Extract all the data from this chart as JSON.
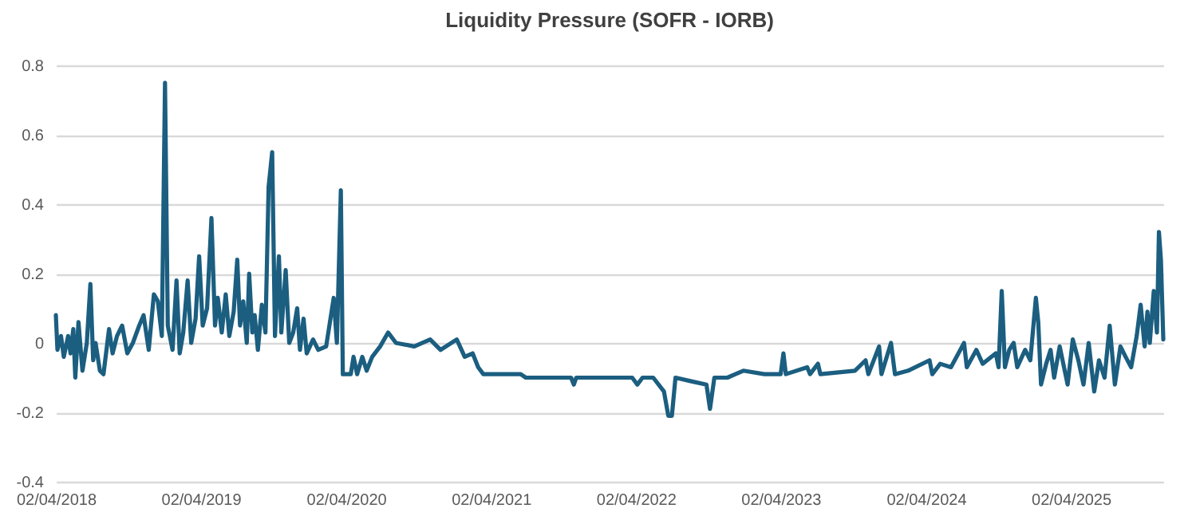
{
  "chart_data": {
    "type": "line",
    "title": "Liquidity Pressure (SOFR - IORB)",
    "x": [
      "2018-04-02",
      "2018-04-06",
      "2018-04-15",
      "2018-04-22",
      "2018-05-03",
      "2018-05-09",
      "2018-05-16",
      "2018-05-21",
      "2018-05-29",
      "2018-06-08",
      "2018-06-19",
      "2018-06-28",
      "2018-07-05",
      "2018-07-11",
      "2018-07-22",
      "2018-07-31",
      "2018-08-14",
      "2018-08-23",
      "2018-09-03",
      "2018-09-16",
      "2018-09-29",
      "2018-10-13",
      "2018-10-29",
      "2018-11-09",
      "2018-11-22",
      "2018-12-05",
      "2018-12-15",
      "2018-12-25",
      "2019-01-02",
      "2019-01-09",
      "2019-01-21",
      "2019-01-31",
      "2019-02-08",
      "2019-02-17",
      "2019-02-28",
      "2019-03-09",
      "2019-03-20",
      "2019-03-29",
      "2019-04-07",
      "2019-04-18",
      "2019-04-29",
      "2019-05-08",
      "2019-05-15",
      "2019-05-25",
      "2019-06-04",
      "2019-06-13",
      "2019-06-24",
      "2019-07-03",
      "2019-07-10",
      "2019-07-18",
      "2019-07-27",
      "2019-08-02",
      "2019-08-10",
      "2019-08-16",
      "2019-08-24",
      "2019-09-03",
      "2019-09-12",
      "2019-09-20",
      "2019-09-29",
      "2019-10-06",
      "2019-10-16",
      "2019-10-22",
      "2019-11-02",
      "2019-11-11",
      "2019-11-21",
      "2019-12-01",
      "2019-12-08",
      "2019-12-17",
      "2019-12-25",
      "2020-01-10",
      "2020-01-23",
      "2020-02-12",
      "2020-03-02",
      "2020-03-10",
      "2020-03-20",
      "2020-03-25",
      "2020-04-14",
      "2020-04-21",
      "2020-04-30",
      "2020-05-13",
      "2020-05-24",
      "2020-06-07",
      "2020-06-27",
      "2020-07-17",
      "2020-08-06",
      "2020-09-21",
      "2020-10-31",
      "2020-11-26",
      "2021-01-06",
      "2021-01-26",
      "2021-02-15",
      "2021-03-01",
      "2021-03-14",
      "2021-06-16",
      "2021-06-29",
      "2021-10-21",
      "2021-10-28",
      "2021-11-03",
      "2022-03-24",
      "2022-04-06",
      "2022-04-19",
      "2022-05-16",
      "2022-06-12",
      "2022-06-23",
      "2022-07-02",
      "2022-07-11",
      "2022-08-18",
      "2022-09-27",
      "2022-10-06",
      "2022-10-17",
      "2022-11-19",
      "2022-12-09",
      "2022-12-29",
      "2023-02-20",
      "2023-04-02",
      "2023-04-09",
      "2023-04-15",
      "2023-06-08",
      "2023-06-15",
      "2023-07-05",
      "2023-07-11",
      "2023-10-06",
      "2023-11-02",
      "2023-11-09",
      "2023-12-06",
      "2023-12-12",
      "2024-01-05",
      "2024-01-15",
      "2024-02-17",
      "2024-04-11",
      "2024-04-18",
      "2024-05-08",
      "2024-06-04",
      "2024-07-07",
      "2024-07-14",
      "2024-08-07",
      "2024-08-23",
      "2024-09-25",
      "2024-10-02",
      "2024-10-10",
      "2024-10-18",
      "2024-10-29",
      "2024-11-09",
      "2024-11-18",
      "2024-12-08",
      "2024-12-21",
      "2025-01-04",
      "2025-01-10",
      "2025-01-17",
      "2025-01-30",
      "2025-02-10",
      "2025-02-19",
      "2025-03-05",
      "2025-03-14",
      "2025-03-25",
      "2025-04-07",
      "2025-04-21",
      "2025-05-04",
      "2025-05-17",
      "2025-05-31",
      "2025-06-12",
      "2025-06-26",
      "2025-07-09",
      "2025-07-22",
      "2025-08-05",
      "2025-08-18",
      "2025-09-01",
      "2025-09-15",
      "2025-09-25",
      "2025-10-05",
      "2025-10-12",
      "2025-10-18",
      "2025-10-28",
      "2025-11-05",
      "2025-11-10",
      "2025-11-15",
      "2025-11-21"
    ],
    "series": [
      {
        "color": "#1b5e80",
        "values": [
          0.08,
          -0.02,
          0.02,
          -0.04,
          0.02,
          -0.03,
          0.04,
          -0.1,
          0.06,
          -0.08,
          0.0,
          0.17,
          -0.05,
          0.0,
          -0.08,
          -0.09,
          0.04,
          -0.03,
          0.02,
          0.05,
          -0.03,
          0.0,
          0.05,
          0.08,
          -0.02,
          0.14,
          0.12,
          0.02,
          0.75,
          0.05,
          -0.02,
          0.18,
          -0.03,
          0.03,
          0.18,
          0.0,
          0.07,
          0.25,
          0.05,
          0.1,
          0.36,
          0.05,
          0.13,
          0.03,
          0.14,
          0.02,
          0.09,
          0.24,
          0.05,
          0.12,
          0.0,
          0.2,
          0.03,
          0.08,
          -0.02,
          0.11,
          0.03,
          0.45,
          0.55,
          0.02,
          0.25,
          0.03,
          0.21,
          0.0,
          0.03,
          0.1,
          -0.02,
          0.07,
          -0.03,
          0.01,
          -0.02,
          -0.01,
          0.13,
          0.0,
          0.44,
          -0.09,
          -0.09,
          -0.04,
          -0.09,
          -0.04,
          -0.08,
          -0.04,
          -0.01,
          0.03,
          0.0,
          -0.01,
          0.01,
          -0.02,
          0.01,
          -0.04,
          -0.03,
          -0.07,
          -0.09,
          -0.09,
          -0.1,
          -0.1,
          -0.12,
          -0.1,
          -0.1,
          -0.12,
          -0.1,
          -0.1,
          -0.14,
          -0.21,
          -0.21,
          -0.1,
          -0.11,
          -0.12,
          -0.19,
          -0.1,
          -0.1,
          -0.09,
          -0.08,
          -0.09,
          -0.09,
          -0.03,
          -0.09,
          -0.07,
          -0.09,
          -0.06,
          -0.09,
          -0.08,
          -0.05,
          -0.09,
          -0.01,
          -0.09,
          0.0,
          -0.09,
          -0.08,
          -0.05,
          -0.09,
          -0.06,
          -0.07,
          0.0,
          -0.07,
          -0.02,
          -0.06,
          -0.03,
          -0.07,
          0.15,
          -0.07,
          -0.02,
          0.0,
          -0.07,
          -0.02,
          -0.05,
          0.13,
          0.06,
          -0.12,
          -0.06,
          -0.02,
          -0.1,
          -0.01,
          -0.06,
          -0.12,
          0.01,
          -0.05,
          -0.12,
          0.0,
          -0.14,
          -0.05,
          -0.1,
          0.05,
          -0.12,
          -0.01,
          -0.04,
          -0.07,
          0.02,
          0.11,
          -0.01,
          0.09,
          0.0,
          0.15,
          0.03,
          0.32,
          0.24,
          0.01
        ]
      }
    ],
    "xlim": [
      "2018-04-02",
      "2025-11-21"
    ],
    "xticks": [
      {
        "value": "2018-04-02",
        "label": "02/04/2018"
      },
      {
        "value": "2019-04-02",
        "label": "02/04/2019"
      },
      {
        "value": "2020-04-02",
        "label": "02/04/2020"
      },
      {
        "value": "2021-04-02",
        "label": "02/04/2021"
      },
      {
        "value": "2022-04-02",
        "label": "02/04/2022"
      },
      {
        "value": "2023-04-02",
        "label": "02/04/2023"
      },
      {
        "value": "2024-04-02",
        "label": "02/04/2024"
      },
      {
        "value": "2025-04-02",
        "label": "02/04/2025"
      }
    ],
    "ylim": [
      -0.4,
      0.8
    ],
    "yticks": [
      -0.4,
      -0.2,
      0,
      0.2,
      0.4,
      0.6,
      0.8
    ],
    "grid": "y"
  }
}
